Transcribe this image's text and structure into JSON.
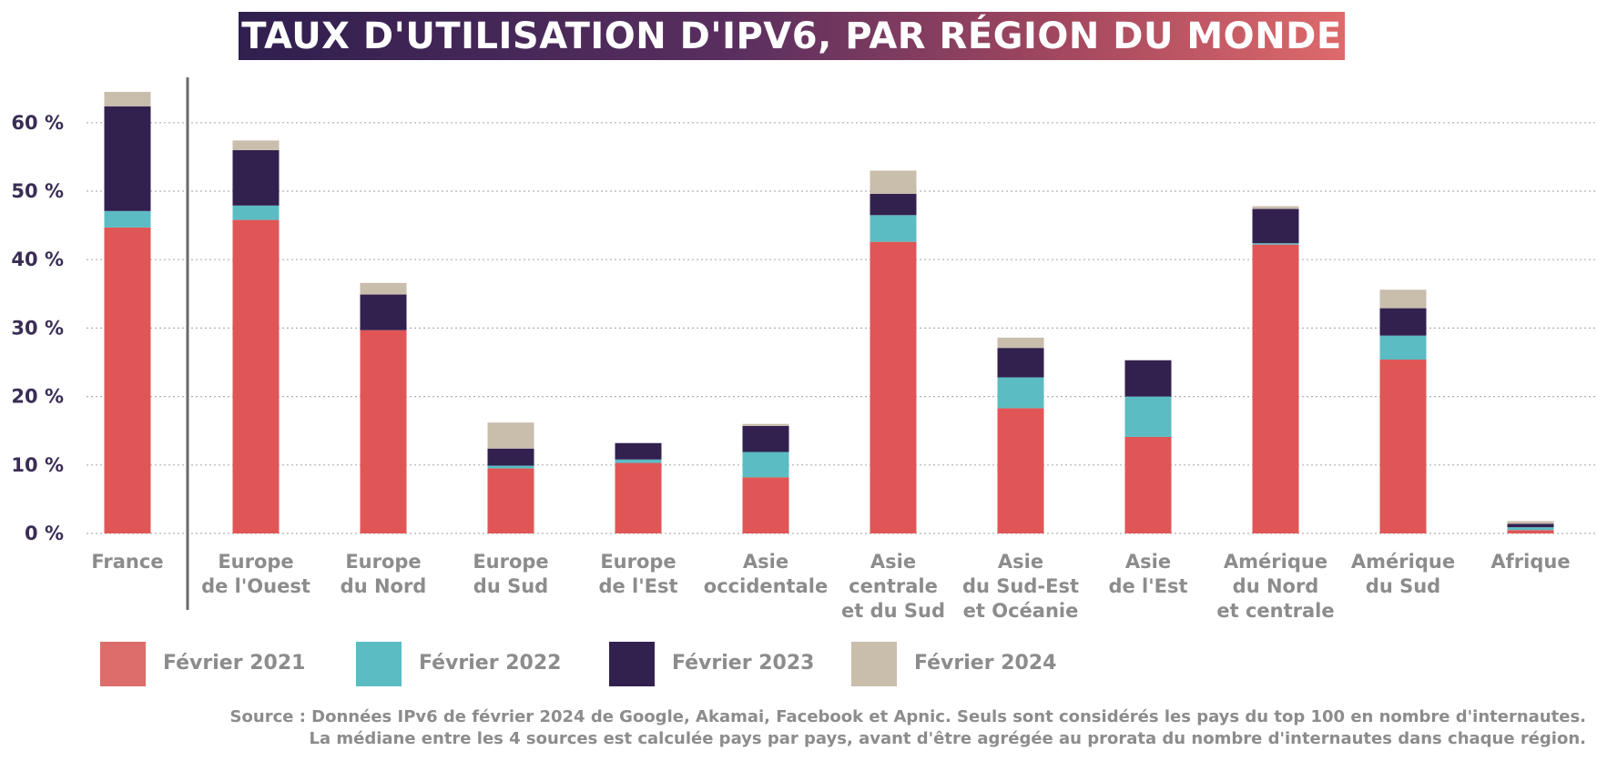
{
  "title": "TAUX D'UTILISATION D'IPV6, PAR RÉGION DU MONDE",
  "source": {
    "line1": "Source : Données IPv6 de février 2024 de Google, Akamai, Facebook et Apnic. Seuls sont considérés les pays du top 100 en nombre d'internautes.",
    "line2": "La médiane entre les 4 sources est calculée pays par pays, avant d'être agrégée au prorata du nombre d'internautes dans chaque région."
  },
  "colors": {
    "feb2021": "#e05656",
    "feb2021_legend": "#dc6d6b",
    "feb2022": "#5bbcc3",
    "feb2023": "#32214f",
    "feb2024": "#c9bdac",
    "axis_text": "#3a2d55",
    "category_text": "#8c8c8c",
    "separator": "#6a6a6a",
    "grid": "#b0b0b0"
  },
  "chart_data": {
    "type": "bar",
    "stacked": true,
    "note": "Cumulative stacked bars: each later year's segment adds growth on top of the previous year's total.",
    "categories": [
      "France",
      "Europe de l'Ouest",
      "Europe du Nord",
      "Europe du Sud",
      "Europe de l'Est",
      "Asie occidentale",
      "Asie centrale et du Sud",
      "Asie du Sud-Est et Océanie",
      "Asie de l'Est",
      "Amérique du Nord et centrale",
      "Amérique du Sud",
      "Afrique"
    ],
    "category_labels": [
      [
        "France"
      ],
      [
        "Europe",
        "de l'Ouest"
      ],
      [
        "Europe",
        "du Nord"
      ],
      [
        "Europe",
        "du Sud"
      ],
      [
        "Europe",
        "de l'Est"
      ],
      [
        "Asie",
        "occidentale"
      ],
      [
        "Asie",
        "centrale",
        "et du Sud"
      ],
      [
        "Asie",
        "du Sud-Est",
        "et Océanie"
      ],
      [
        "Asie",
        "de l'Est"
      ],
      [
        "Amérique",
        "du Nord",
        "et centrale"
      ],
      [
        "Amérique",
        "du Sud"
      ],
      [
        "Afrique"
      ]
    ],
    "series": [
      {
        "name": "Février 2021",
        "color_key": "feb2021",
        "totals": [
          44.7,
          45.8,
          29.7,
          9.5,
          10.3,
          8.2,
          42.6,
          18.3,
          14.1,
          42.2,
          25.4,
          0.5
        ]
      },
      {
        "name": "Février 2022",
        "color_key": "feb2022",
        "totals": [
          47.1,
          47.9,
          29.7,
          9.9,
          10.8,
          11.9,
          46.5,
          22.8,
          20.0,
          42.4,
          28.9,
          0.9
        ]
      },
      {
        "name": "Février 2023",
        "color_key": "feb2023",
        "totals": [
          62.4,
          56.0,
          34.9,
          12.4,
          13.2,
          15.7,
          49.6,
          27.1,
          25.3,
          47.4,
          32.9,
          1.4
        ]
      },
      {
        "name": "Février 2024",
        "color_key": "feb2024",
        "totals": [
          64.5,
          57.4,
          36.6,
          16.2,
          13.2,
          16.0,
          53.0,
          28.6,
          25.3,
          47.8,
          35.6,
          1.8
        ]
      }
    ],
    "yticks": [
      0,
      10,
      20,
      30,
      40,
      50,
      60
    ],
    "ytick_labels": [
      "0 %",
      "10 %",
      "20 %",
      "30 %",
      "40 %",
      "50 %",
      "60 %"
    ],
    "ylim": [
      0,
      68
    ],
    "grid": true,
    "grid_style": "dotted",
    "legend_position": "bottom-left"
  }
}
